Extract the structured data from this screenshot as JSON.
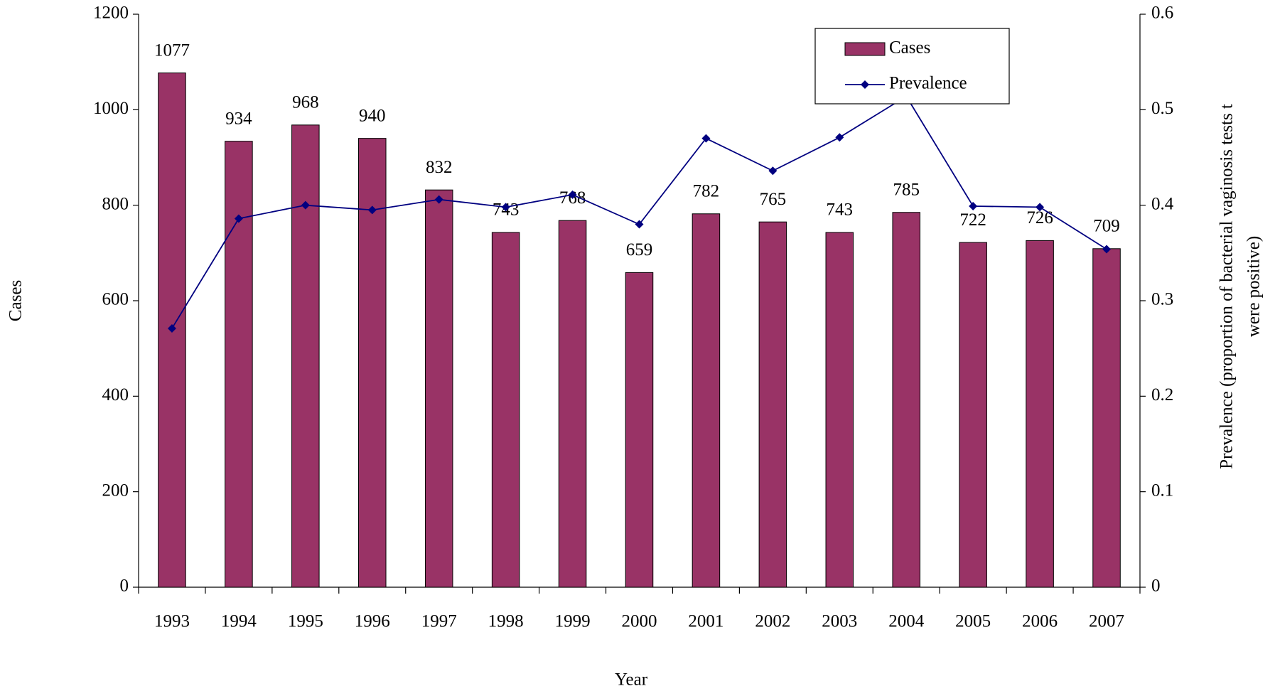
{
  "chart_data": {
    "type": "bar_line",
    "categories": [
      "1993",
      "1994",
      "1995",
      "1996",
      "1997",
      "1998",
      "1999",
      "2000",
      "2001",
      "2002",
      "2003",
      "2004",
      "2005",
      "2006",
      "2007"
    ],
    "series": [
      {
        "name": "Cases",
        "type": "bar",
        "color": "#993366",
        "values": [
          1077,
          934,
          968,
          940,
          832,
          743,
          768,
          659,
          782,
          765,
          743,
          785,
          722,
          726,
          709
        ]
      },
      {
        "name": "Prevalence",
        "type": "line",
        "axis": "y2",
        "color": "#000080",
        "values": [
          0.271,
          0.386,
          0.4,
          0.395,
          0.406,
          0.398,
          0.411,
          0.38,
          0.47,
          0.436,
          0.471,
          0.514,
          0.399,
          0.398,
          0.354
        ]
      }
    ],
    "x_label": "Year",
    "y_label": "Cases",
    "y2_label": [
      "Prevalence (proportion of bacterial vaginosis tests t",
      "were positive)"
    ],
    "ylim": [
      0,
      1200
    ],
    "yticks": [
      0,
      200,
      400,
      600,
      800,
      1000,
      1200
    ],
    "y2lim": [
      0,
      0.6
    ],
    "y2ticks": [
      0,
      0.1,
      0.2,
      0.3,
      0.4,
      0.5,
      0.6
    ],
    "legend": "top-right",
    "grid": false
  }
}
